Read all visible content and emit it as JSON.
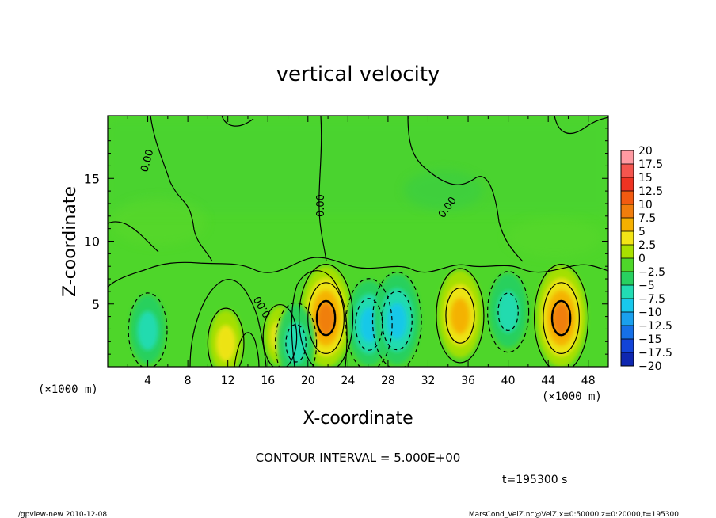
{
  "chart_data": {
    "type": "heatmap",
    "title": "vertical velocity",
    "xlabel": "X-coordinate",
    "ylabel": "Z-coordinate",
    "x_unit": "(×1000 m)",
    "y_unit": "(×1000 m)",
    "xlim": [
      0,
      50
    ],
    "ylim": [
      0,
      20
    ],
    "x_ticks": [
      "4",
      "8",
      "12",
      "16",
      "20",
      "24",
      "28",
      "32",
      "36",
      "40",
      "44",
      "48"
    ],
    "y_ticks": [
      "5",
      "10",
      "15"
    ],
    "contour_label": "0.00",
    "colorbar_labels": [
      "20",
      "17.5",
      "15",
      "12.5",
      "10",
      "7.5",
      "5",
      "2.5",
      "0",
      "−2.5",
      "−5",
      "−7.5",
      "−10",
      "−12.5",
      "−15",
      "−17.5",
      "−20"
    ],
    "colorbar_colors": [
      "#ff9aa2",
      "#f4554e",
      "#ee3322",
      "#f25a10",
      "#f07d0c",
      "#f5b000",
      "#f2e416",
      "#a8e000",
      "#4ed62a",
      "#28d060",
      "#22dcb4",
      "#18c8ec",
      "#1aa0ee",
      "#1670e8",
      "#1244d8",
      "#0e26b0",
      "#6a10b4"
    ],
    "contour_interval": "CONTOUR INTERVAL = 5.000E+00",
    "time": "t=195300 s",
    "cells": [
      {
        "x": 21.8,
        "z": 4.0,
        "w": 10
      },
      {
        "x": 35.2,
        "z": 4.2,
        "w": 7.5
      },
      {
        "x": 45.3,
        "z": 4.0,
        "w": 10
      },
      {
        "x": 11.8,
        "z": 2.0,
        "w": 3
      },
      {
        "x": 17.2,
        "z": 2.5,
        "w": 2
      },
      {
        "x": 4.0,
        "z": 3.0,
        "w": -4
      },
      {
        "x": 26.1,
        "z": 3.5,
        "w": -7
      },
      {
        "x": 28.9,
        "z": 3.8,
        "w": -8
      },
      {
        "x": 40.0,
        "z": 4.5,
        "w": -5
      },
      {
        "x": 18.8,
        "z": 2.0,
        "w": -5
      }
    ]
  },
  "footer": {
    "left": "./gpview-new  2010-12-08",
    "right": "MarsCond_VelZ.nc@VelZ,x=0:50000,z=0:20000,t=195300"
  }
}
